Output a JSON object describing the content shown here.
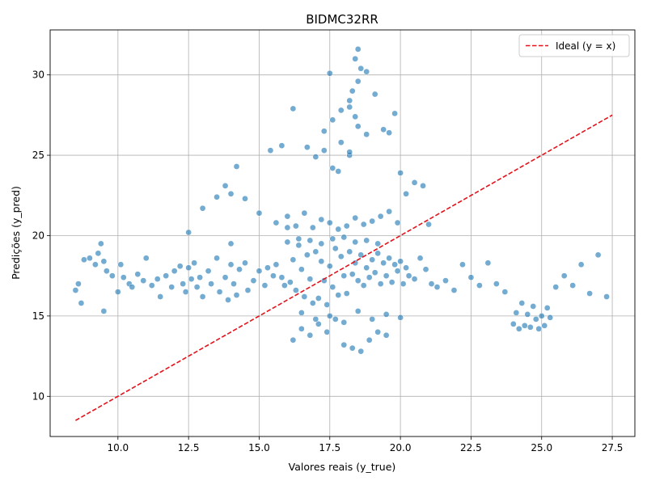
{
  "chart_data": {
    "type": "scatter",
    "title": "BIDMC32RR",
    "xlabel": "Valores reais (y_true)",
    "ylabel": "Predições (y_pred)",
    "xlim": [
      7.6,
      28.3
    ],
    "ylim": [
      7.5,
      32.8
    ],
    "xticks": [
      10.0,
      12.5,
      15.0,
      17.5,
      20.0,
      22.5,
      25.0,
      27.5
    ],
    "xtick_labels": [
      "10.0",
      "12.5",
      "15.0",
      "17.5",
      "20.0",
      "22.5",
      "25.0",
      "27.5"
    ],
    "yticks": [
      10,
      15,
      20,
      25,
      30
    ],
    "ytick_labels": [
      "10",
      "15",
      "20",
      "25",
      "30"
    ],
    "grid": true,
    "legend_position": "top-right",
    "colors": {
      "points": "#1f77b4",
      "ideal_line": "#e3121b"
    },
    "series": [
      {
        "name": "",
        "kind": "points",
        "x": [
          8.5,
          8.6,
          8.7,
          8.8,
          9.0,
          9.2,
          9.3,
          9.4,
          9.5,
          9.5,
          9.6,
          9.8,
          10.0,
          10.1,
          10.2,
          10.4,
          10.5,
          10.7,
          10.9,
          11.0,
          11.2,
          11.4,
          11.5,
          11.7,
          11.9,
          12.0,
          12.2,
          12.3,
          12.4,
          12.5,
          12.6,
          12.7,
          12.8,
          12.9,
          13.0,
          13.2,
          13.3,
          13.5,
          13.6,
          13.8,
          13.9,
          14.0,
          14.0,
          14.1,
          14.2,
          14.3,
          14.5,
          14.6,
          14.8,
          15.0,
          15.2,
          15.3,
          15.5,
          15.6,
          15.8,
          15.9,
          16.0,
          16.1,
          16.2,
          16.3,
          16.4,
          16.5,
          16.6,
          16.7,
          16.8,
          16.9,
          17.0,
          17.1,
          17.2,
          17.3,
          17.4,
          17.5,
          17.6,
          17.7,
          17.8,
          17.9,
          18.0,
          18.1,
          18.2,
          18.3,
          18.4,
          18.5,
          18.6,
          18.7,
          18.8,
          18.9,
          19.0,
          19.1,
          19.2,
          19.3,
          19.4,
          19.5,
          19.6,
          19.7,
          19.8,
          19.9,
          20.0,
          20.1,
          20.2,
          20.3,
          20.5,
          20.7,
          20.9,
          21.1,
          21.3,
          21.6,
          21.9,
          22.2,
          22.5,
          22.8,
          23.1,
          23.4,
          23.7,
          24.0,
          24.1,
          24.2,
          24.3,
          24.4,
          24.5,
          24.6,
          24.7,
          24.8,
          24.9,
          25.0,
          25.1,
          25.2,
          25.3,
          25.5,
          25.8,
          26.1,
          26.4,
          26.7,
          27.0,
          27.3,
          16.2,
          16.5,
          16.8,
          17.1,
          17.4,
          17.7,
          18.0,
          18.3,
          18.6,
          18.9,
          19.2,
          19.5,
          15.6,
          16.0,
          16.3,
          16.6,
          16.9,
          17.2,
          17.5,
          17.8,
          18.1,
          18.4,
          18.7,
          19.0,
          19.3,
          19.6,
          19.9,
          20.2,
          20.5,
          20.8,
          21.0,
          17.3,
          17.6,
          17.9,
          18.2,
          18.5,
          18.8,
          19.1,
          19.4,
          16.7,
          17.0,
          17.3,
          17.6,
          17.9,
          18.2,
          18.5,
          18.8,
          18.5,
          18.4,
          18.6,
          18.3,
          18.2,
          18.4,
          17.5,
          13.0,
          13.5,
          14.0,
          14.5,
          15.0,
          12.5,
          14.2,
          13.8,
          16.5,
          17.0,
          17.5,
          18.0,
          18.5,
          19.0,
          19.5,
          20.0,
          16.0,
          16.4,
          16.8,
          17.2,
          17.6,
          18.0,
          18.4,
          18.8,
          19.2,
          15.4,
          15.8,
          16.2,
          17.8,
          18.2,
          19.6,
          20.0,
          19.8
        ],
        "y": [
          16.6,
          17.0,
          15.8,
          18.5,
          18.6,
          18.2,
          18.9,
          19.5,
          15.3,
          18.4,
          17.8,
          17.5,
          16.5,
          18.2,
          17.4,
          17.0,
          16.8,
          17.6,
          17.2,
          18.6,
          16.9,
          17.3,
          16.2,
          17.5,
          16.8,
          17.8,
          18.1,
          17.0,
          16.5,
          18.0,
          17.3,
          18.3,
          16.8,
          17.4,
          16.2,
          17.8,
          17.0,
          18.6,
          16.5,
          17.4,
          16.0,
          18.2,
          19.5,
          17.0,
          16.3,
          17.9,
          18.3,
          16.6,
          17.2,
          17.8,
          16.9,
          18.0,
          17.5,
          18.2,
          17.4,
          16.9,
          20.5,
          17.1,
          18.5,
          16.6,
          19.4,
          17.9,
          16.2,
          18.8,
          17.3,
          15.8,
          19.0,
          16.1,
          18.4,
          17.2,
          15.7,
          18.1,
          16.8,
          19.2,
          16.3,
          18.7,
          17.5,
          16.4,
          19.0,
          17.6,
          18.3,
          17.2,
          18.8,
          16.9,
          18.0,
          17.4,
          18.5,
          17.7,
          18.9,
          17.0,
          18.3,
          17.5,
          18.6,
          17.1,
          18.2,
          17.8,
          18.4,
          17.0,
          18.0,
          17.5,
          17.3,
          18.6,
          17.9,
          17.0,
          16.8,
          17.2,
          16.6,
          18.2,
          17.4,
          16.9,
          18.3,
          17.0,
          16.5,
          14.5,
          15.2,
          14.2,
          15.8,
          14.4,
          15.1,
          14.3,
          15.6,
          14.8,
          14.2,
          15.0,
          14.4,
          15.5,
          14.9,
          16.8,
          17.5,
          16.9,
          18.2,
          16.4,
          18.8,
          16.2,
          13.5,
          14.2,
          13.8,
          14.5,
          14.0,
          14.8,
          13.2,
          13.0,
          12.8,
          13.5,
          14.0,
          13.8,
          20.8,
          21.2,
          20.6,
          21.4,
          20.5,
          21.0,
          20.8,
          20.4,
          20.6,
          21.1,
          20.7,
          20.9,
          21.2,
          21.5,
          20.8,
          22.6,
          23.3,
          23.1,
          20.7,
          26.5,
          27.2,
          27.8,
          28.4,
          29.6,
          30.2,
          28.8,
          26.6,
          25.5,
          24.9,
          25.3,
          24.2,
          25.8,
          25.0,
          26.8,
          26.3,
          31.6,
          31.0,
          30.4,
          29.0,
          28.0,
          27.4,
          30.1,
          21.7,
          22.4,
          22.6,
          22.3,
          21.4,
          20.2,
          24.3,
          23.1,
          15.2,
          14.8,
          15.0,
          14.6,
          15.3,
          14.8,
          15.1,
          14.9,
          19.6,
          19.8,
          19.7,
          19.5,
          19.8,
          19.9,
          19.6,
          19.7,
          19.5,
          25.3,
          25.6,
          27.9,
          24.0,
          25.2,
          26.4,
          23.9,
          27.6
        ]
      },
      {
        "name": "Ideal (y = x)",
        "kind": "line",
        "x": [
          8.5,
          27.5
        ],
        "y": [
          8.5,
          27.5
        ]
      }
    ]
  }
}
